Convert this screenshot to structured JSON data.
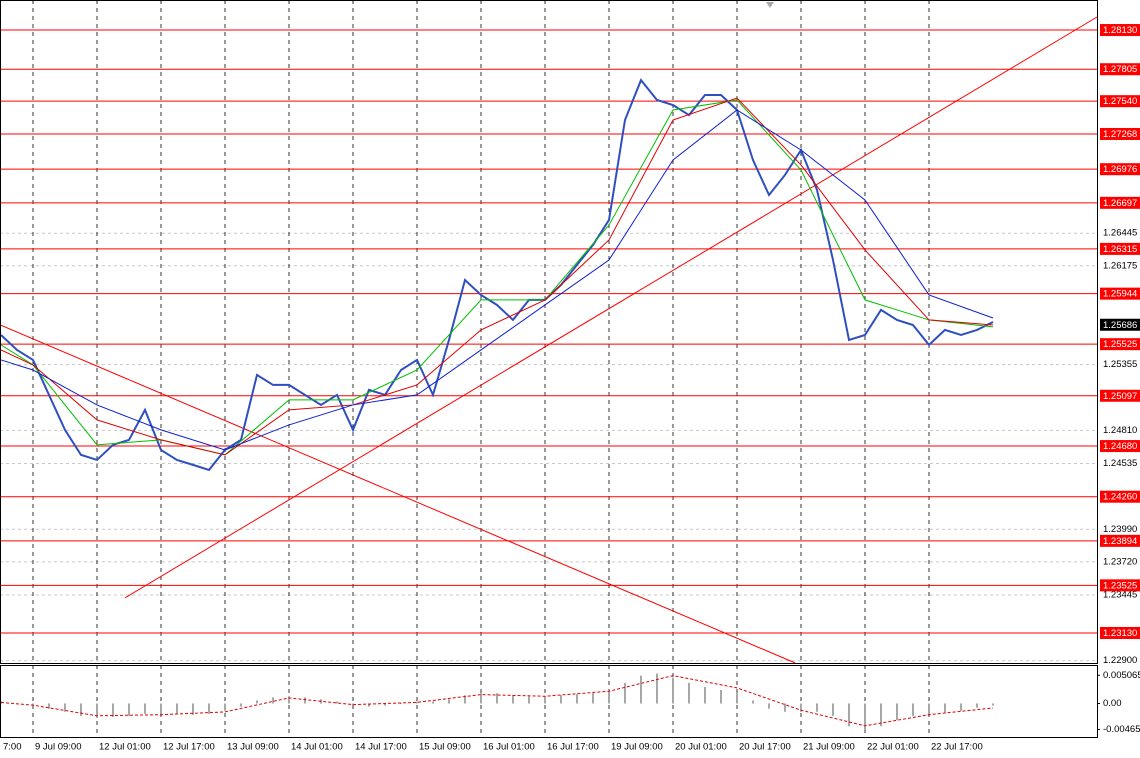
{
  "chart_data": [
    {
      "type": "line",
      "xlim": [
        -8.25,
        266
      ],
      "ylim": [
        1.22881,
        1.28379
      ],
      "xticks": [
        {
          "value": -8,
          "label": "7:00"
        },
        {
          "value": 0,
          "label": "9 Jul 09:00"
        },
        {
          "value": 16,
          "label": "12 Jul 01:00"
        },
        {
          "value": 32,
          "label": "12 Jul 17:00"
        },
        {
          "value": 48,
          "label": "13 Jul 09:00"
        },
        {
          "value": 64,
          "label": "14 Jul 01:00"
        },
        {
          "value": 80,
          "label": "14 Jul 17:00"
        },
        {
          "value": 96,
          "label": "15 Jul 09:00"
        },
        {
          "value": 112,
          "label": "16 Jul 01:00"
        },
        {
          "value": 128,
          "label": "16 Jul 17:00"
        },
        {
          "value": 144,
          "label": "19 Jul 09:00"
        },
        {
          "value": 160,
          "label": "20 Jul 01:00"
        },
        {
          "value": 176,
          "label": "20 Jul 17:00"
        },
        {
          "value": 192,
          "label": "21 Jul 09:00"
        },
        {
          "value": 208,
          "label": "22 Jul 01:00"
        },
        {
          "value": 224,
          "label": "22 Jul 17:00"
        }
      ],
      "yticks": [
        {
          "value": 1.229,
          "label": "1.22900"
        },
        1.23445,
        {
          "value": 1.2372,
          "label": "1.23720"
        },
        {
          "value": 1.2399,
          "label": "1.23990"
        },
        1.24535,
        {
          "value": 1.2481,
          "label": "1.24810"
        },
        1.25355,
        1.26175,
        1.26445
      ],
      "grid": true,
      "levels": [
        {
          "value": 1.2813,
          "label": "1.28130"
        },
        1.27805,
        {
          "value": 1.2754,
          "label": "1.27540"
        },
        1.27268,
        1.26976,
        1.26697,
        1.26315,
        1.25944,
        1.25525,
        1.25097,
        {
          "value": 1.2468,
          "label": "1.24680"
        },
        {
          "value": 1.2426,
          "label": "1.24260"
        },
        1.23894,
        1.23525,
        {
          "value": 1.2313,
          "label": "1.23130"
        }
      ],
      "level_color": "#ff0000",
      "current_price": 1.25686,
      "trendlines": [
        {
          "color": "#ff0000",
          "x": [
            -8.25,
            190.5
          ],
          "y": [
            1.25685,
            1.22882
          ]
        },
        {
          "color": "#ff0000",
          "x": [
            23,
            266
          ],
          "y": [
            1.23421,
            1.28238
          ]
        }
      ],
      "series": [
        {
          "color": "#2f4fc0",
          "width": 2,
          "x": [
            -8,
            -4,
            0,
            4,
            8,
            12,
            16,
            20,
            24,
            28,
            32,
            36,
            40,
            44,
            48,
            52,
            56,
            60,
            64,
            68,
            72,
            76,
            80,
            84,
            88,
            92,
            96,
            100,
            104,
            108,
            112,
            116,
            120,
            124,
            128,
            132,
            136,
            140,
            144,
            148,
            152,
            156,
            160,
            164,
            168,
            172,
            176,
            180,
            184,
            188,
            192,
            196,
            200,
            204,
            208,
            212,
            216,
            220,
            224,
            228,
            232,
            236,
            240
          ],
          "values": [
            1.25601,
            1.25477,
            1.25394,
            1.25104,
            1.24814,
            1.24607,
            1.24565,
            1.2469,
            1.24731,
            1.2498,
            1.24648,
            1.24565,
            1.24524,
            1.24482,
            1.24648,
            1.24731,
            1.2527,
            1.25187,
            1.25187,
            1.25104,
            1.25021,
            1.25104,
            1.24814,
            1.25146,
            1.25104,
            1.25311,
            1.25394,
            1.25104,
            1.2556,
            1.26057,
            1.25933,
            1.2585,
            1.25726,
            1.25892,
            1.25892,
            1.26016,
            1.26182,
            1.26348,
            1.26555,
            1.27384,
            1.27715,
            1.2755,
            1.27508,
            1.27425,
            1.27591,
            1.27591,
            1.27467,
            1.27052,
            1.26762,
            1.26928,
            1.27135,
            1.26804,
            1.26223,
            1.2556,
            1.25601,
            1.25809,
            1.25726,
            1.25684,
            1.25519,
            1.25643,
            1.25601,
            1.25643,
            1.25709
          ]
        },
        {
          "color": "#00c000",
          "width": 1,
          "x": [
            -8,
            0,
            16,
            32,
            48,
            64,
            80,
            96,
            112,
            128,
            144,
            160,
            176,
            192,
            208,
            224,
            240
          ],
          "values": [
            1.25519,
            1.25353,
            1.2469,
            1.24731,
            1.24607,
            1.25063,
            1.25063,
            1.25311,
            1.25892,
            1.25892,
            1.26513,
            1.27467,
            1.2755,
            1.26969,
            1.25892,
            1.25726,
            1.25668
          ]
        },
        {
          "color": "#e00000",
          "width": 1,
          "x": [
            -8,
            0,
            16,
            32,
            48,
            64,
            80,
            96,
            112,
            128,
            144,
            160,
            176,
            192,
            208,
            224,
            240
          ],
          "values": [
            1.25477,
            1.25353,
            1.24897,
            1.24731,
            1.24607,
            1.2498,
            1.25021,
            1.25187,
            1.25643,
            1.25892,
            1.26389,
            1.27384,
            1.27566,
            1.27011,
            1.26306,
            1.25726,
            1.25684
          ]
        },
        {
          "color": "#1020d0",
          "width": 1,
          "x": [
            -8,
            0,
            16,
            32,
            48,
            64,
            80,
            96,
            112,
            128,
            144,
            160,
            176,
            192,
            208,
            224,
            240
          ],
          "values": [
            1.25394,
            1.25311,
            1.25021,
            1.24814,
            1.24648,
            1.24855,
            1.25021,
            1.25104,
            1.25477,
            1.2585,
            1.26223,
            1.27052,
            1.27467,
            1.27135,
            1.26721,
            1.25933,
            1.25742
          ]
        }
      ]
    },
    {
      "type": "bar",
      "xlim": [
        -8.25,
        266
      ],
      "ylim": [
        -0.006,
        0.0069
      ],
      "yticks": [
        0.005065,
        {
          "value": 0,
          "label": "0.00"
        },
        -0.00465
      ],
      "color": "#a8a8a8",
      "x": [
        -8,
        -4,
        0,
        4,
        8,
        12,
        16,
        20,
        24,
        28,
        32,
        36,
        40,
        44,
        48,
        52,
        56,
        60,
        64,
        68,
        72,
        76,
        80,
        84,
        88,
        92,
        96,
        100,
        104,
        108,
        112,
        116,
        120,
        124,
        128,
        132,
        136,
        140,
        144,
        148,
        152,
        156,
        160,
        164,
        168,
        172,
        176,
        180,
        184,
        188,
        192,
        196,
        200,
        204,
        208,
        212,
        216,
        220,
        224,
        228,
        232,
        236,
        240
      ],
      "values": [
        0.00037,
        0,
        -0.00037,
        -0.00093,
        -0.00148,
        -0.00222,
        -0.00259,
        -0.00241,
        -0.00222,
        -0.00185,
        -0.00185,
        -0.00185,
        -0.00204,
        -0.00185,
        -0.0013,
        -0.00056,
        0.00056,
        0.00111,
        0.0013,
        0.00111,
        0.00074,
        0.00037,
        -0.00037,
        -0.00056,
        -0.00037,
        0,
        0.00037,
        0.00037,
        0.00074,
        0.00148,
        0.00185,
        0.00185,
        0.00148,
        0.0013,
        0.0013,
        0.00148,
        0.00167,
        0.00185,
        0.00241,
        0.0037,
        0.005,
        0.00537,
        0.00463,
        0.0037,
        0.00296,
        0.00241,
        0.00185,
        0.00056,
        -0.00093,
        -0.00148,
        -0.00148,
        -0.00148,
        -0.00222,
        -0.00407,
        -0.00481,
        -0.00407,
        -0.00296,
        -0.00222,
        -0.00185,
        -0.00167,
        -0.0013,
        -0.00074,
        -0.00037
      ],
      "signal": {
        "color": "#e00000",
        "x": [
          -8,
          0,
          16,
          32,
          48,
          64,
          80,
          96,
          112,
          128,
          144,
          160,
          176,
          192,
          208,
          224,
          240
        ],
        "values": [
          0.0002,
          -0.0003,
          -0.0022,
          -0.002,
          -0.0015,
          0.001,
          -0.0002,
          0.0002,
          0.0016,
          0.0013,
          0.0022,
          0.005,
          0.0028,
          -0.0012,
          -0.004,
          -0.002,
          -0.0008
        ]
      }
    }
  ]
}
